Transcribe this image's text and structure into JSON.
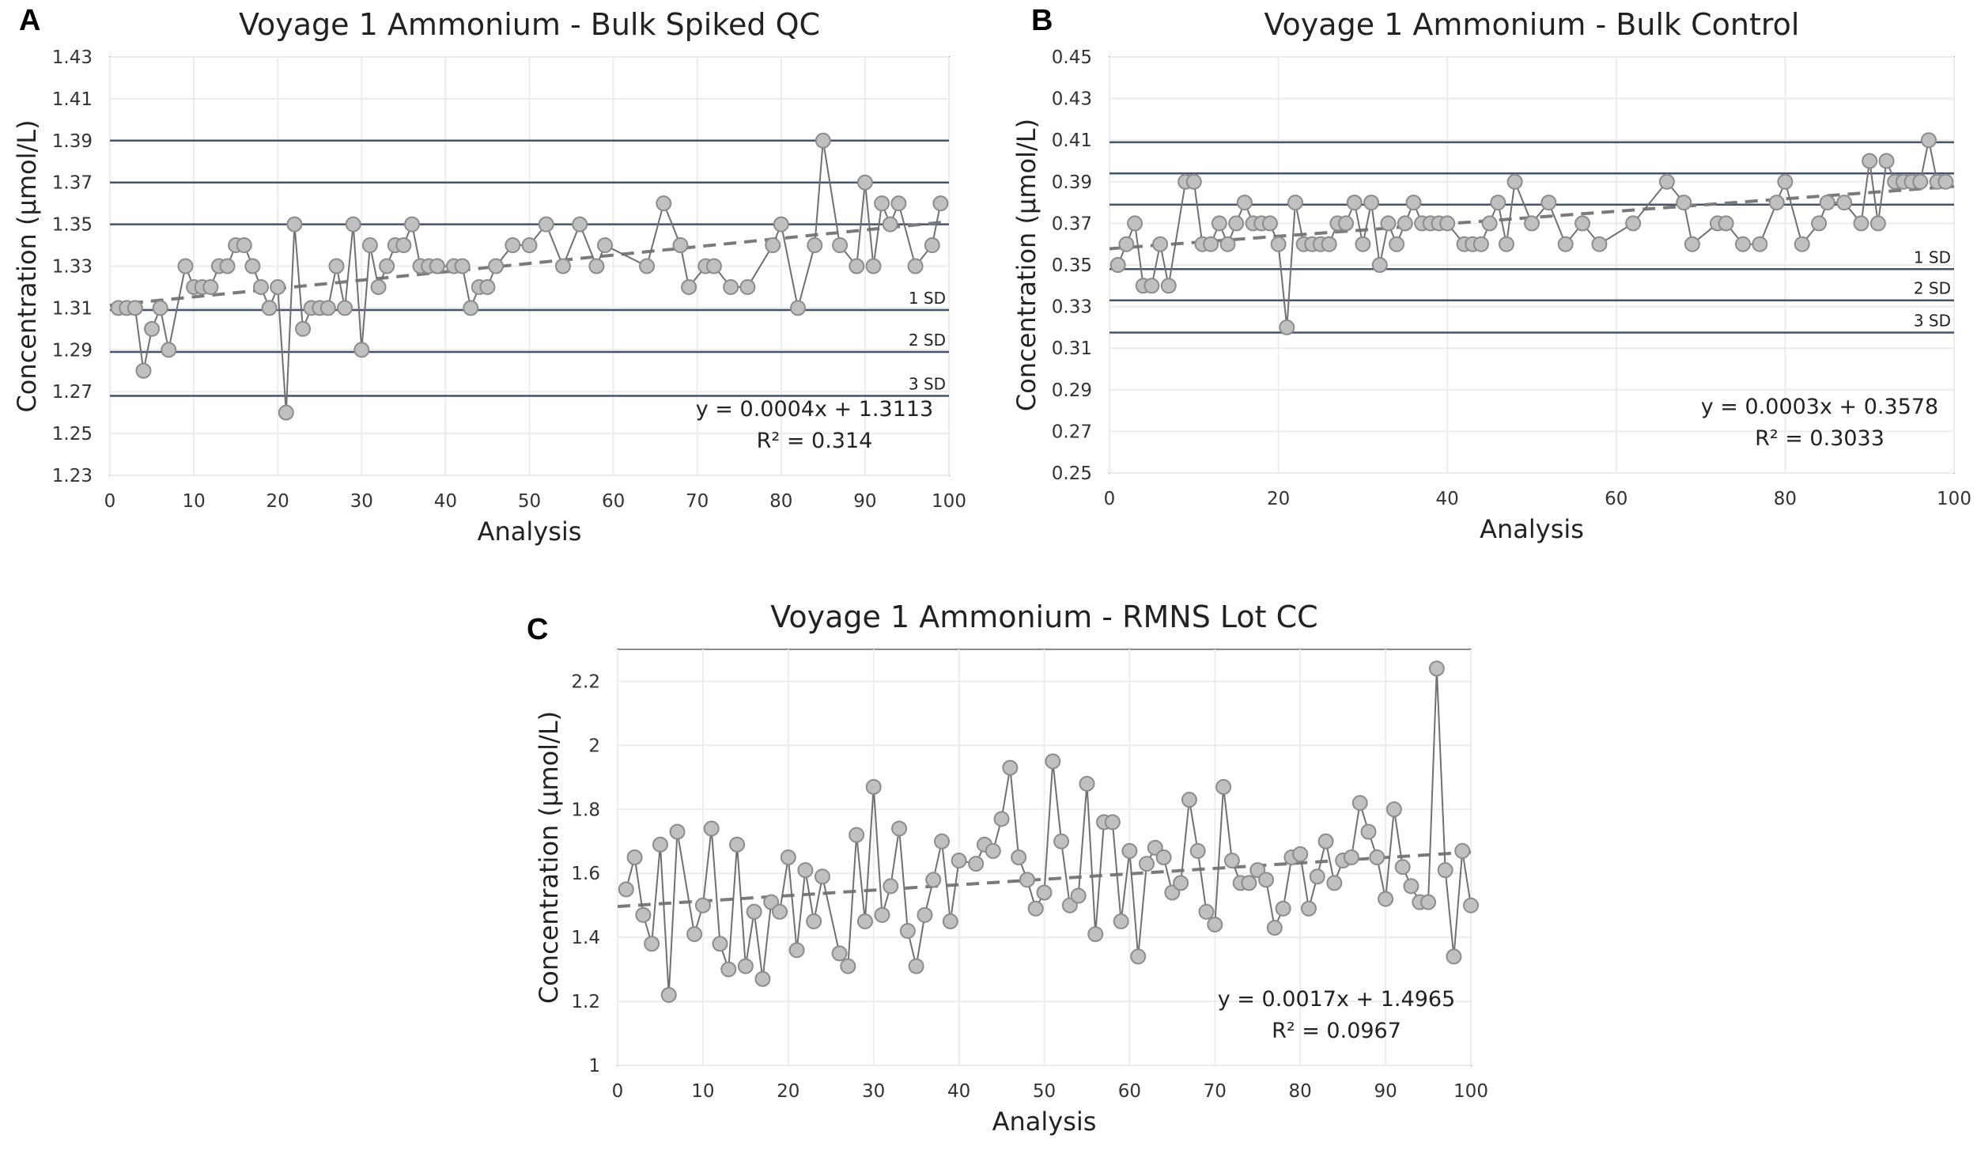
{
  "chart_data": [
    {
      "panel": "A",
      "type": "line",
      "title": "Voyage 1 Ammonium - Bulk Spiked QC",
      "xlabel": "Analysis",
      "ylabel": "Concentration (µmol/L)",
      "xlim": [
        0,
        100
      ],
      "ylim": [
        1.23,
        1.43
      ],
      "xticks": [
        0,
        10,
        20,
        30,
        40,
        50,
        60,
        70,
        80,
        90,
        100
      ],
      "yticks": [
        1.23,
        1.25,
        1.27,
        1.29,
        1.31,
        1.33,
        1.35,
        1.37,
        1.39,
        1.41,
        1.43
      ],
      "ytick_labels": [
        "1.23",
        "1.25",
        "1.27",
        "1.29",
        "1.31",
        "1.33",
        "1.35",
        "1.37",
        "1.39",
        "1.41",
        "1.43"
      ],
      "control_lines": [
        {
          "value": 1.39,
          "label": ""
        },
        {
          "value": 1.37,
          "label": ""
        },
        {
          "value": 1.35,
          "label": ""
        },
        {
          "value": 1.309,
          "label": "1 SD"
        },
        {
          "value": 1.289,
          "label": "2 SD"
        },
        {
          "value": 1.268,
          "label": "3 SD"
        }
      ],
      "trend": {
        "slope": 0.0004,
        "intercept": 1.3113,
        "equation": "y = 0.0004x + 1.3113",
        "r2": "R² = 0.314"
      },
      "x": [
        1,
        2,
        3,
        4,
        5,
        6,
        7,
        9,
        10,
        11,
        12,
        13,
        14,
        15,
        16,
        17,
        18,
        19,
        20,
        21,
        22,
        23,
        24,
        25,
        26,
        27,
        28,
        29,
        30,
        31,
        32,
        33,
        34,
        35,
        36,
        37,
        38,
        39,
        41,
        42,
        43,
        44,
        45,
        46,
        48,
        50,
        52,
        54,
        56,
        58,
        59,
        64,
        66,
        68,
        69,
        71,
        72,
        74,
        76,
        79,
        80,
        82,
        84,
        85,
        87,
        89,
        90,
        91,
        92,
        93,
        94,
        96,
        98,
        99
      ],
      "y": [
        1.31,
        1.31,
        1.31,
        1.28,
        1.3,
        1.31,
        1.29,
        1.33,
        1.32,
        1.32,
        1.32,
        1.33,
        1.33,
        1.34,
        1.34,
        1.33,
        1.32,
        1.31,
        1.32,
        1.26,
        1.35,
        1.3,
        1.31,
        1.31,
        1.31,
        1.33,
        1.31,
        1.35,
        1.29,
        1.34,
        1.32,
        1.33,
        1.34,
        1.34,
        1.35,
        1.33,
        1.33,
        1.33,
        1.33,
        1.33,
        1.31,
        1.32,
        1.32,
        1.33,
        1.34,
        1.34,
        1.35,
        1.33,
        1.35,
        1.33,
        1.34,
        1.33,
        1.36,
        1.34,
        1.32,
        1.33,
        1.33,
        1.32,
        1.32,
        1.34,
        1.35,
        1.31,
        1.34,
        1.39,
        1.34,
        1.33,
        1.37,
        1.33,
        1.36,
        1.35,
        1.36,
        1.33,
        1.34,
        1.36
      ]
    },
    {
      "panel": "B",
      "type": "line",
      "title": "Voyage 1 Ammonium - Bulk Control",
      "xlabel": "Analysis",
      "ylabel": "Concentration (µmol/L)",
      "xlim": [
        0,
        100
      ],
      "ylim": [
        0.25,
        0.45
      ],
      "xticks": [
        0,
        20,
        40,
        60,
        80,
        100
      ],
      "yticks": [
        0.25,
        0.27,
        0.29,
        0.31,
        0.33,
        0.35,
        0.37,
        0.39,
        0.41,
        0.43,
        0.45
      ],
      "ytick_labels": [
        "0.25",
        "0.27",
        "0.29",
        "0.31",
        "0.33",
        "0.35",
        "0.37",
        "0.39",
        "0.41",
        "0.43",
        "0.45"
      ],
      "control_lines": [
        {
          "value": 0.409,
          "label": ""
        },
        {
          "value": 0.394,
          "label": ""
        },
        {
          "value": 0.379,
          "label": ""
        },
        {
          "value": 0.348,
          "label": "1 SD"
        },
        {
          "value": 0.333,
          "label": "2 SD"
        },
        {
          "value": 0.3175,
          "label": "3 SD"
        }
      ],
      "trend": {
        "slope": 0.0003,
        "intercept": 0.3578,
        "equation": "y = 0.0003x + 0.3578",
        "r2": "R² = 0.3033"
      },
      "x": [
        1,
        2,
        3,
        4,
        5,
        6,
        7,
        9,
        10,
        11,
        12,
        13,
        14,
        15,
        16,
        17,
        18,
        19,
        20,
        21,
        22,
        23,
        24,
        25,
        26,
        27,
        28,
        29,
        30,
        31,
        32,
        33,
        34,
        35,
        36,
        37,
        38,
        39,
        40,
        42,
        43,
        44,
        45,
        46,
        47,
        48,
        50,
        52,
        54,
        56,
        58,
        62,
        66,
        68,
        69,
        72,
        73,
        75,
        77,
        79,
        80,
        82,
        84,
        85,
        87,
        89,
        90,
        91,
        92,
        93,
        94,
        95,
        96,
        97,
        98,
        99
      ],
      "y": [
        0.35,
        0.36,
        0.37,
        0.34,
        0.34,
        0.36,
        0.34,
        0.39,
        0.39,
        0.36,
        0.36,
        0.37,
        0.36,
        0.37,
        0.38,
        0.37,
        0.37,
        0.37,
        0.36,
        0.32,
        0.38,
        0.36,
        0.36,
        0.36,
        0.36,
        0.37,
        0.37,
        0.38,
        0.36,
        0.38,
        0.35,
        0.37,
        0.36,
        0.37,
        0.38,
        0.37,
        0.37,
        0.37,
        0.37,
        0.36,
        0.36,
        0.36,
        0.37,
        0.38,
        0.36,
        0.39,
        0.37,
        0.38,
        0.36,
        0.37,
        0.36,
        0.37,
        0.39,
        0.38,
        0.36,
        0.37,
        0.37,
        0.36,
        0.36,
        0.38,
        0.39,
        0.36,
        0.37,
        0.38,
        0.38,
        0.37,
        0.4,
        0.37,
        0.4,
        0.39,
        0.39,
        0.39,
        0.39,
        0.41,
        0.39,
        0.39
      ]
    },
    {
      "panel": "C",
      "type": "line",
      "title": "Voyage 1 Ammonium - RMNS Lot CC",
      "xlabel": "Analysis",
      "ylabel": "Concentration (µmol/L)",
      "xlim": [
        0,
        100
      ],
      "ylim": [
        1,
        2.3
      ],
      "xticks": [
        0,
        10,
        20,
        30,
        40,
        50,
        60,
        70,
        80,
        90,
        100
      ],
      "yticks": [
        1,
        1.2,
        1.4,
        1.6,
        1.8,
        2,
        2.2
      ],
      "ytick_labels": [
        "1",
        "1.2",
        "1.4",
        "1.6",
        "1.8",
        "2",
        "2.2"
      ],
      "control_lines": [],
      "trend": {
        "slope": 0.0017,
        "intercept": 1.4965,
        "equation": "y = 0.0017x + 1.4965",
        "r2": "R² = 0.0967"
      },
      "x": [
        1,
        2,
        3,
        4,
        5,
        6,
        7,
        9,
        10,
        11,
        12,
        13,
        14,
        15,
        16,
        17,
        18,
        19,
        20,
        21,
        22,
        23,
        24,
        26,
        27,
        28,
        29,
        30,
        31,
        32,
        33,
        34,
        35,
        36,
        37,
        38,
        39,
        40,
        42,
        43,
        44,
        45,
        46,
        47,
        48,
        49,
        50,
        51,
        52,
        53,
        54,
        55,
        56,
        57,
        58,
        59,
        60,
        61,
        62,
        63,
        64,
        65,
        66,
        67,
        68,
        69,
        70,
        71,
        72,
        73,
        74,
        75,
        76,
        77,
        78,
        79,
        80,
        81,
        82,
        83,
        84,
        85,
        86,
        87,
        88,
        89,
        90,
        91,
        92,
        93,
        94,
        95,
        96,
        97,
        98,
        99,
        100
      ],
      "y": [
        1.55,
        1.65,
        1.47,
        1.38,
        1.69,
        1.22,
        1.73,
        1.41,
        1.5,
        1.74,
        1.38,
        1.3,
        1.69,
        1.31,
        1.48,
        1.27,
        1.51,
        1.48,
        1.65,
        1.36,
        1.61,
        1.45,
        1.59,
        1.35,
        1.31,
        1.72,
        1.45,
        1.87,
        1.47,
        1.56,
        1.74,
        1.42,
        1.31,
        1.47,
        1.58,
        1.7,
        1.45,
        1.64,
        1.63,
        1.69,
        1.67,
        1.77,
        1.93,
        1.65,
        1.58,
        1.49,
        1.54,
        1.95,
        1.7,
        1.5,
        1.53,
        1.88,
        1.41,
        1.76,
        1.76,
        1.45,
        1.67,
        1.34,
        1.63,
        1.68,
        1.65,
        1.54,
        1.57,
        1.83,
        1.67,
        1.48,
        1.44,
        1.87,
        1.64,
        1.57,
        1.57,
        1.61,
        1.58,
        1.43,
        1.49,
        1.65,
        1.66,
        1.49,
        1.59,
        1.7,
        1.57,
        1.64,
        1.65,
        1.82,
        1.73,
        1.65,
        1.52,
        1.8,
        1.62,
        1.56,
        1.51,
        1.51,
        2.24,
        1.61,
        1.34,
        1.67,
        1.5
      ]
    }
  ]
}
